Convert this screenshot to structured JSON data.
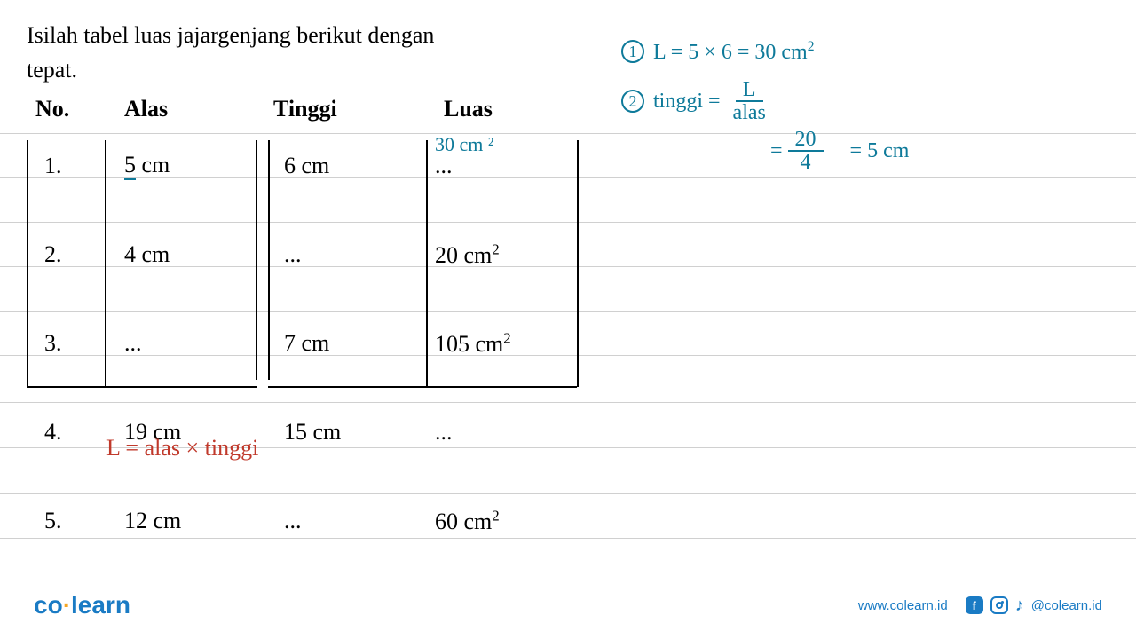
{
  "question": {
    "line1": "Isilah tabel luas jajargenjang berikut dengan",
    "line2": "tepat."
  },
  "headers": {
    "no": "No.",
    "alas": "Alas",
    "tinggi": "Tinggi",
    "luas": "Luas"
  },
  "rows": [
    {
      "no": "1.",
      "alas": "5 cm",
      "tinggi": "6 cm",
      "luas": "...",
      "answer": "30 cm ²",
      "underlineAlas": true
    },
    {
      "no": "2.",
      "alas": "4 cm",
      "tinggi": "...",
      "luas": "20 cm²"
    },
    {
      "no": "3.",
      "alas": "...",
      "tinggi": "7 cm",
      "luas": "105 cm²"
    },
    {
      "no": "4.",
      "alas": "19 cm",
      "tinggi": "15 cm",
      "luas": "..."
    },
    {
      "no": "5.",
      "alas": "12 cm",
      "tinggi": "...",
      "luas": "60 cm²"
    }
  ],
  "formula": "L = alas × tinggi",
  "work": {
    "line1": {
      "num": "1",
      "text": "L = 5 × 6   = 30 cm²"
    },
    "line2": {
      "num": "2",
      "prefix": "tinggi  =",
      "fracNum": "L",
      "fracDen": "alas"
    },
    "line3": {
      "prefix": "=",
      "fracNum": "20",
      "fracDen": "4",
      "suffix": "= 5 cm"
    }
  },
  "footer": {
    "logo1": "co",
    "logo2": "learn",
    "url": "www.colearn.id",
    "handle": "@colearn.id"
  },
  "colors": {
    "handwriting": "#0e7a9a",
    "red": "#c0392b",
    "brand": "#1a7bc4",
    "accent": "#f5a623",
    "line": "#d0d0d0"
  },
  "notebookLineYs": [
    150,
    200,
    250,
    300,
    350,
    400,
    453,
    504,
    556,
    606
  ]
}
